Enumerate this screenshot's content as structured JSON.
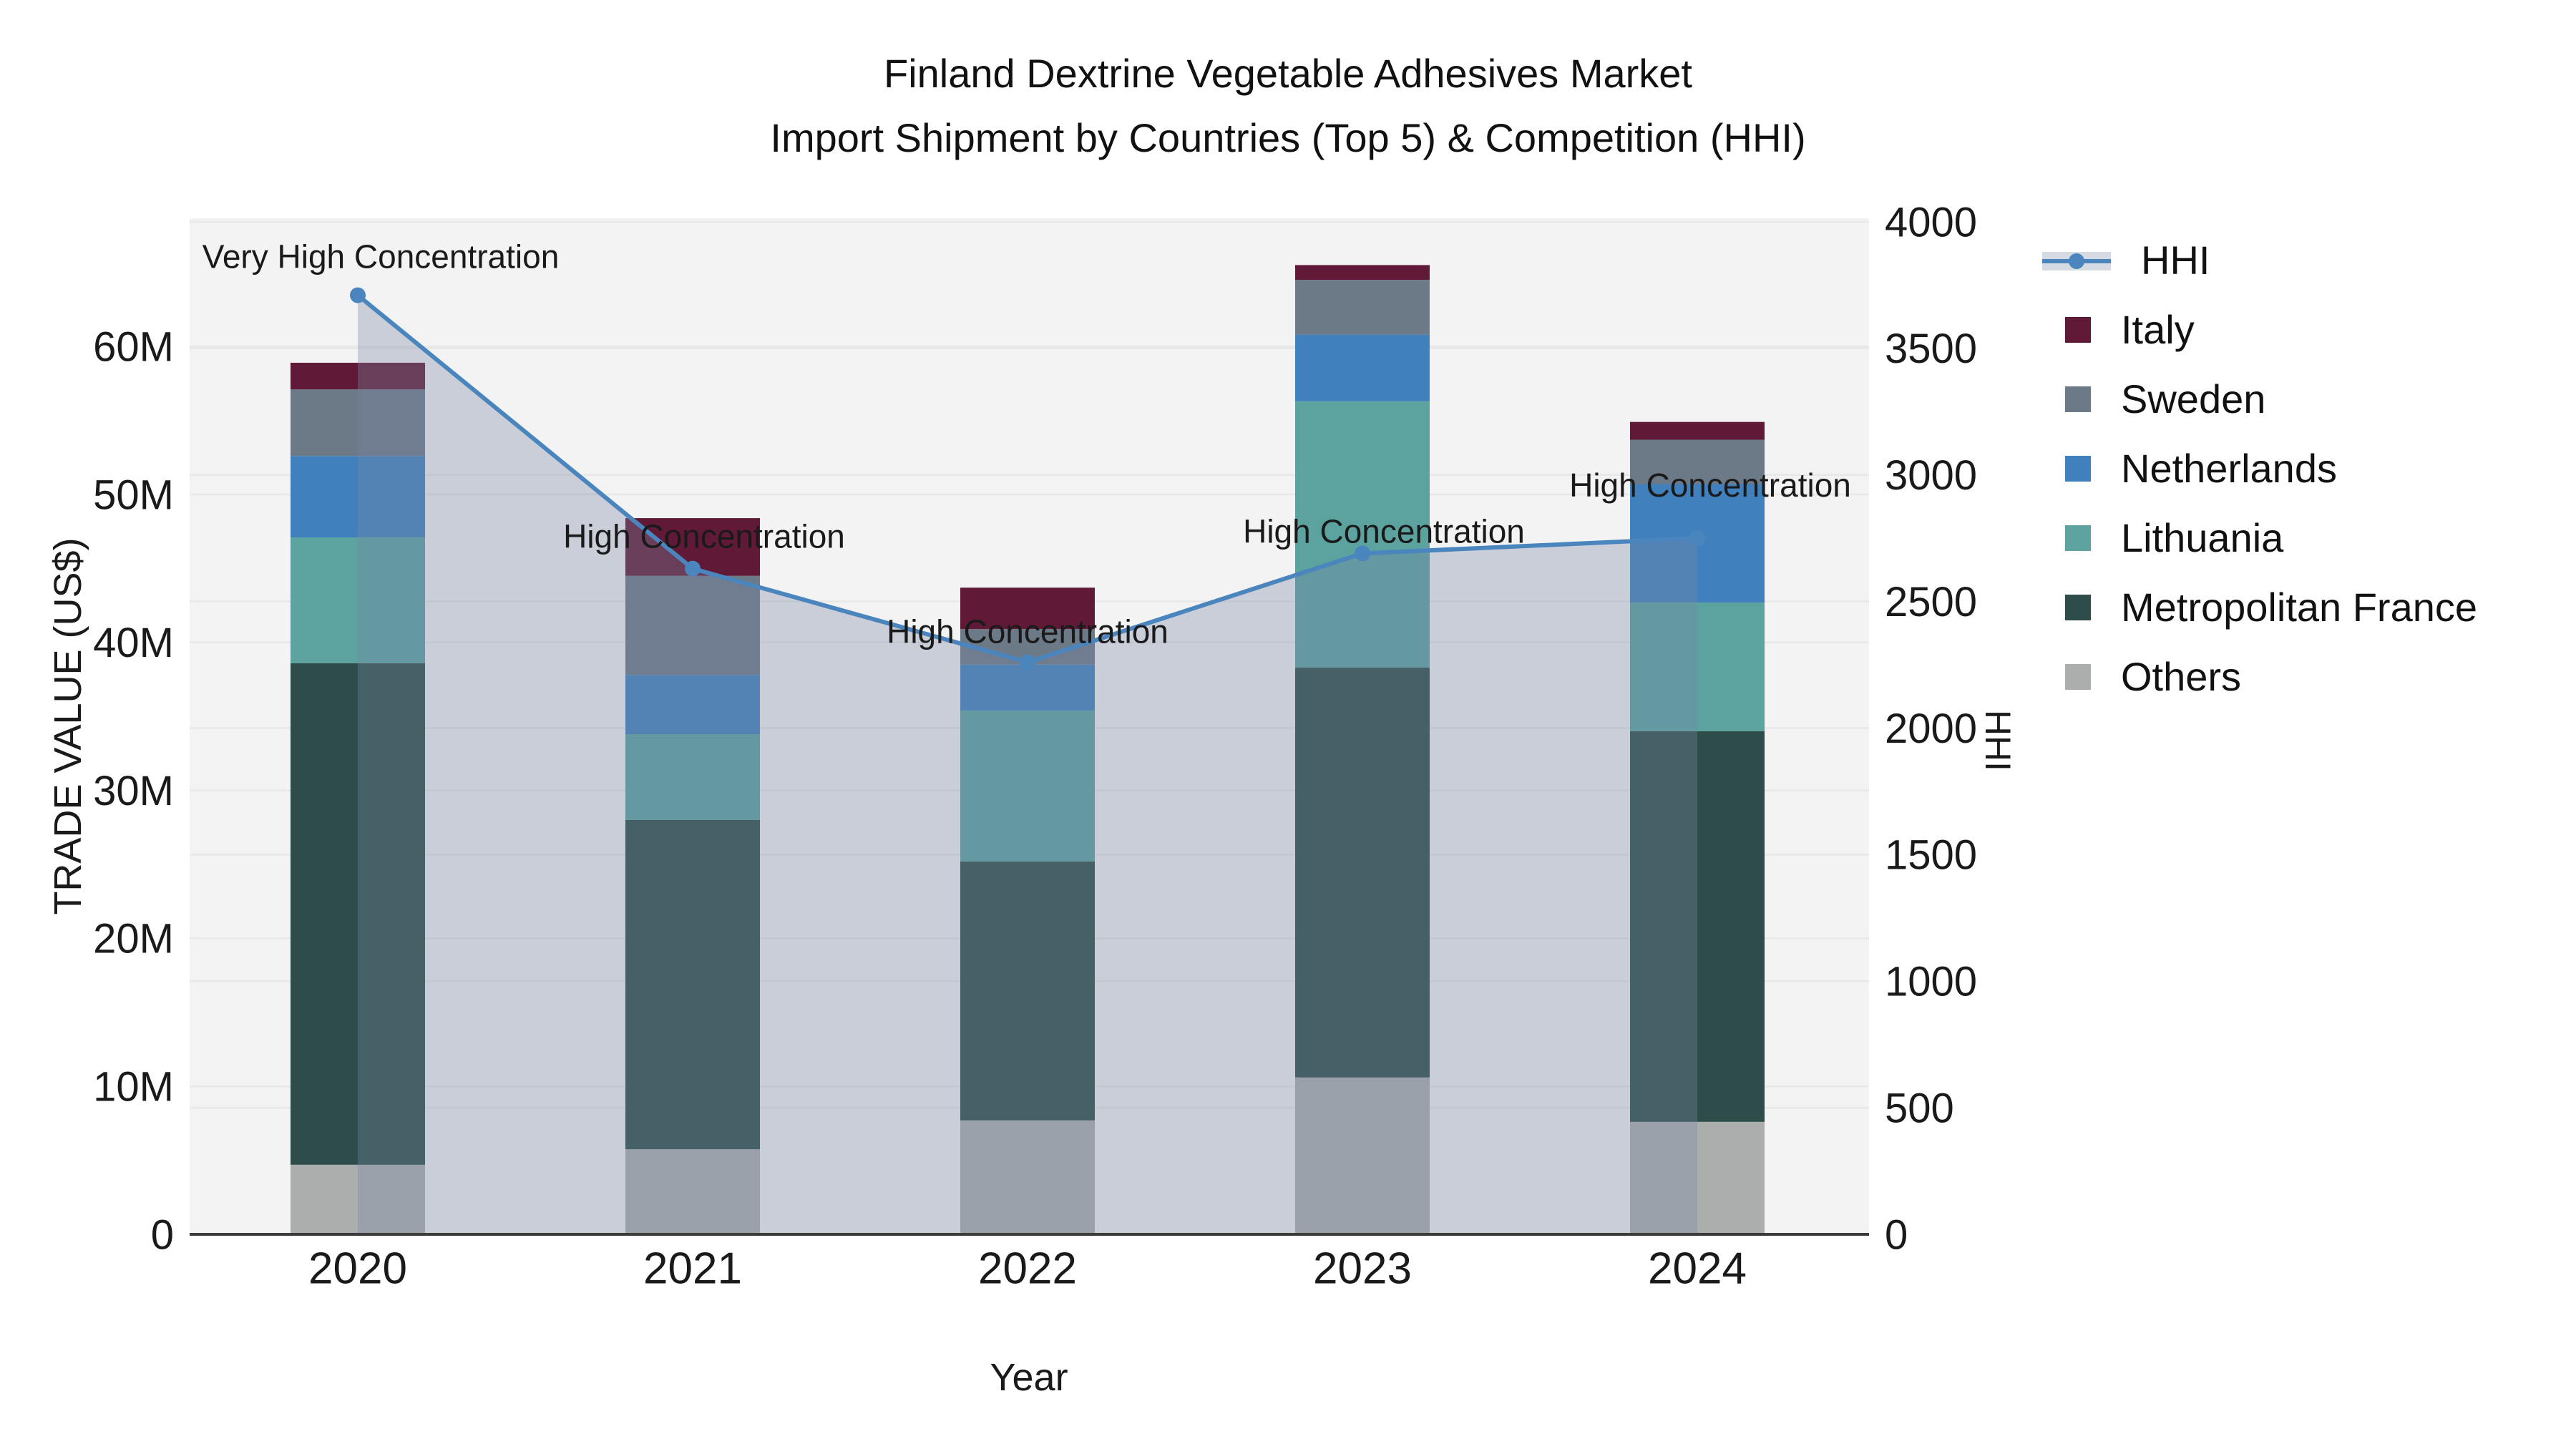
{
  "title": {
    "line1": "Finland Dextrine Vegetable Adhesives Market",
    "line2": "Import Shipment by Countries (Top 5) & Competition (HHI)"
  },
  "chart_data": {
    "type": "stacked-bar+line",
    "categories": [
      "2020",
      "2021",
      "2022",
      "2023",
      "2024"
    ],
    "bar_unit": "M US$",
    "series": [
      {
        "name": "Others",
        "color": "#acaeae",
        "values": [
          4.7,
          5.75,
          7.7,
          10.6,
          7.6
        ]
      },
      {
        "name": "Metropolitan France",
        "color": "#2d4c4a",
        "values": [
          33.9,
          22.25,
          17.5,
          27.7,
          26.4
        ]
      },
      {
        "name": "Lithuania",
        "color": "#5ca3a0",
        "values": [
          8.5,
          5.8,
          10.2,
          18.0,
          8.7
        ]
      },
      {
        "name": "Netherlands",
        "color": "#4080bc",
        "values": [
          5.5,
          4.0,
          3.1,
          4.5,
          8.0
        ]
      },
      {
        "name": "Sweden",
        "color": "#6c7987",
        "values": [
          4.5,
          6.7,
          2.4,
          3.7,
          3.0
        ]
      },
      {
        "name": "Italy",
        "color": "#601936",
        "values": [
          1.8,
          3.9,
          2.8,
          1.0,
          1.2
        ]
      }
    ],
    "stack_totals": [
      58.9,
      48.4,
      43.7,
      65.5,
      54.9
    ],
    "line_series": {
      "name": "HHI",
      "color": "#4a86bd",
      "fill_color": "rgba(120,135,165,0.34)",
      "values": [
        3710,
        2630,
        2260,
        2690,
        2750
      ]
    },
    "annotations": [
      "Very High Concentration",
      "High Concentration",
      "High Concentration",
      "High Concentration",
      "High Concentration"
    ],
    "y_left": {
      "label": "TRADE VALUE (US$)",
      "ticks": [
        "0",
        "10M",
        "20M",
        "30M",
        "40M",
        "50M",
        "60M"
      ],
      "tick_values": [
        0,
        10,
        20,
        30,
        40,
        50,
        60
      ],
      "range_max_m": 68.7
    },
    "y_right": {
      "label": "HHI",
      "ticks": [
        "0",
        "500",
        "1000",
        "1500",
        "2000",
        "2500",
        "3000",
        "3500",
        "4000"
      ],
      "tick_values": [
        0,
        500,
        1000,
        1500,
        2000,
        2500,
        3000,
        3500,
        4000
      ],
      "range_max": 4010
    },
    "x": {
      "label": "Year"
    },
    "legend_position": "right",
    "grid": true
  },
  "legend": {
    "items": [
      {
        "label": "HHI",
        "type": "line",
        "color": "#4a86bd"
      },
      {
        "label": "Italy",
        "type": "box",
        "color": "#601936"
      },
      {
        "label": "Sweden",
        "type": "box",
        "color": "#6c7987"
      },
      {
        "label": "Netherlands",
        "type": "box",
        "color": "#4080bc"
      },
      {
        "label": "Lithuania",
        "type": "box",
        "color": "#5ca3a0"
      },
      {
        "label": "Metropolitan France",
        "type": "box",
        "color": "#2d4c4a"
      },
      {
        "label": "Others",
        "type": "box",
        "color": "#acaeae"
      }
    ]
  }
}
